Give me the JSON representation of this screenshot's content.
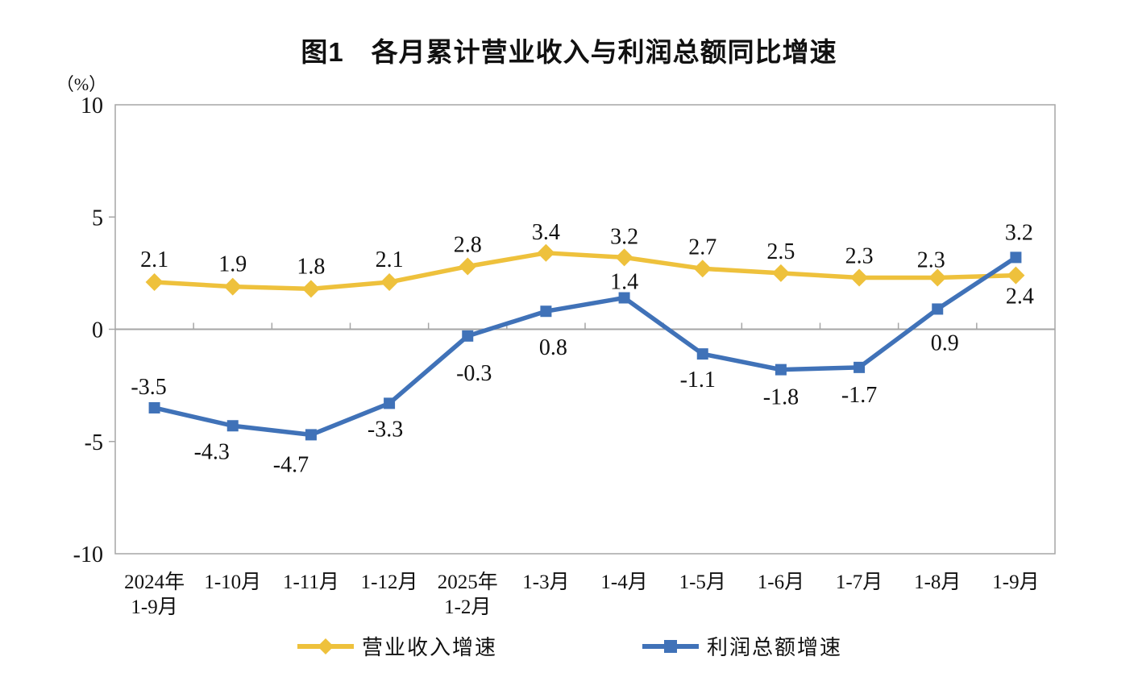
{
  "chart_data": {
    "type": "line",
    "title": "图1　各月累计营业收入与利润总额同比增速",
    "unit_label": "（%）",
    "ylim": [
      -10,
      10
    ],
    "yticks": [
      10,
      5,
      0,
      -5,
      -10
    ],
    "grid": "zero-line-only",
    "legend_position": "bottom",
    "axis_color": "#a6a6a6",
    "text_color": "#111111",
    "categories": [
      [
        "2024年",
        "1-9月"
      ],
      [
        "1-10月"
      ],
      [
        "1-11月"
      ],
      [
        "1-12月"
      ],
      [
        "2025年",
        "1-2月"
      ],
      [
        "1-3月"
      ],
      [
        "1-4月"
      ],
      [
        "1-5月"
      ],
      [
        "1-6月"
      ],
      [
        "1-7月"
      ],
      [
        "1-8月"
      ],
      [
        "1-9月"
      ]
    ],
    "series": [
      {
        "name": "营业收入增速",
        "color": "#eec13c",
        "marker": "diamond",
        "values": [
          2.1,
          1.9,
          1.8,
          2.1,
          2.8,
          3.4,
          3.2,
          2.7,
          2.5,
          2.3,
          2.3,
          2.4
        ],
        "label_offsets": [
          [
            0,
            -28
          ],
          [
            0,
            -28
          ],
          [
            0,
            -28
          ],
          [
            0,
            -28
          ],
          [
            0,
            -27
          ],
          [
            0,
            -26
          ],
          [
            0,
            -26
          ],
          [
            0,
            -27
          ],
          [
            0,
            -27
          ],
          [
            0,
            -27
          ],
          [
            -8,
            -22
          ],
          [
            5,
            26
          ]
        ]
      },
      {
        "name": "利润总额增速",
        "color": "#4072b8",
        "marker": "square",
        "values": [
          -3.5,
          -4.3,
          -4.7,
          -3.3,
          -0.3,
          0.8,
          1.4,
          -1.1,
          -1.8,
          -1.7,
          0.9,
          3.2
        ],
        "label_offsets": [
          [
            -7,
            -26
          ],
          [
            -26,
            32
          ],
          [
            -25,
            37
          ],
          [
            -5,
            32
          ],
          [
            8,
            46
          ],
          [
            9,
            45
          ],
          [
            0,
            -20
          ],
          [
            -6,
            32
          ],
          [
            0,
            34
          ],
          [
            0,
            34
          ],
          [
            9,
            42
          ],
          [
            4,
            -31
          ]
        ]
      }
    ]
  }
}
